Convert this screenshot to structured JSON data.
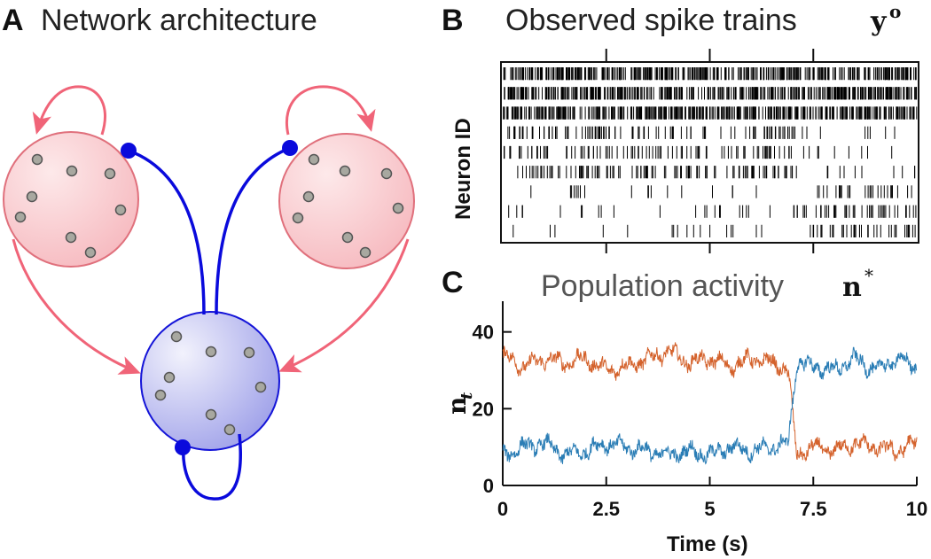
{
  "panel_a": {
    "letter": "A",
    "title": "Network architecture"
  },
  "panel_b": {
    "letter": "B",
    "title": "Observed spike trains",
    "title_symbol": "y",
    "title_superscript": "o",
    "ylabel": "Neuron ID"
  },
  "panel_c": {
    "letter": "C",
    "title": "Population activity",
    "title_symbol": "n",
    "title_superscript": "*"
  },
  "colors": {
    "excitatory_fill": "#f9d2d5",
    "excitatory_stroke": "#e0707c",
    "excitatory_arrow": "#f06478",
    "inhibitory_fill": "#d2d4f6",
    "inhibitory_stroke": "#1414d8",
    "inhibitory_connection": "#0a0adc",
    "neuron_dot": "#9a9a9a",
    "series_1": "#d4622c",
    "series_2": "#2a7db5"
  },
  "chart_data": [
    {
      "type": "raster",
      "rows": 9,
      "xlim": [
        0,
        10
      ],
      "ylabel": "Neuron ID",
      "rows_description": "rows 1-3 continuous firing; rows 4-6 dense until ~7 s then sparse; rows 7-9 sparse until ~7 s then dense"
    },
    {
      "type": "line",
      "xlabel": "Time (s)",
      "ylabel": "n",
      "ylabel_subscript": "t",
      "xlim": [
        0,
        10
      ],
      "ylim": [
        0,
        48
      ],
      "xticks": [
        0,
        2.5,
        5,
        7.5,
        10
      ],
      "xtick_labels": [
        "0",
        "2.5",
        "5",
        "7.5",
        "10"
      ],
      "yticks": [
        0,
        20,
        40
      ],
      "ytick_labels": [
        "0",
        "20",
        "40"
      ],
      "series": [
        {
          "color": "#d4622c",
          "x": [
            0,
            0.5,
            1,
            1.5,
            2,
            2.5,
            3,
            3.5,
            4,
            4.5,
            5,
            5.5,
            6,
            6.5,
            6.9,
            7,
            7.1,
            7.5,
            8,
            8.5,
            9,
            9.5,
            10
          ],
          "values": [
            34,
            31,
            33,
            32,
            33,
            30,
            31,
            33,
            35,
            32,
            33,
            31,
            33,
            32,
            30,
            18,
            8,
            10,
            9,
            11,
            10,
            9,
            11
          ]
        },
        {
          "color": "#2a7db5",
          "x": [
            0,
            0.5,
            1,
            1.5,
            2,
            2.5,
            3,
            3.5,
            4,
            4.5,
            5,
            5.5,
            6,
            6.5,
            6.9,
            7,
            7.1,
            7.5,
            8,
            8.5,
            9,
            9.5,
            10
          ],
          "values": [
            8,
            10,
            11,
            8,
            9,
            11,
            10,
            9,
            8,
            9,
            8,
            10,
            9,
            10,
            11,
            22,
            32,
            31,
            30,
            33,
            30,
            33,
            31
          ]
        }
      ]
    }
  ]
}
